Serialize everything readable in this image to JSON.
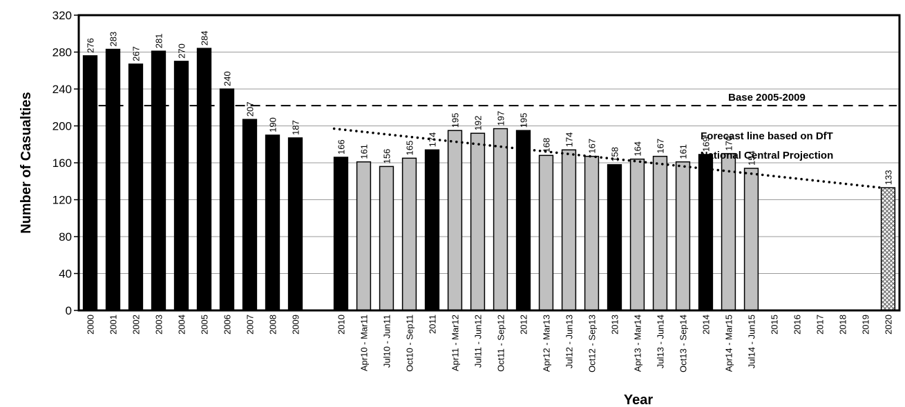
{
  "chart_data": {
    "type": "bar",
    "ylabel": "Number of Casualties",
    "xlabel": "Year",
    "ylim": [
      0,
      320
    ],
    "yticks": [
      0,
      40,
      80,
      120,
      160,
      200,
      240,
      280,
      320
    ],
    "grid": true,
    "colors": {
      "annual": "#000000",
      "rolling": "#c0c0c0",
      "target": "#bfbfbf",
      "outline": "#000000"
    },
    "bars": [
      {
        "label": "2000",
        "value": 276,
        "kind": "annual"
      },
      {
        "label": "2001",
        "value": 283,
        "kind": "annual"
      },
      {
        "label": "2002",
        "value": 267,
        "kind": "annual"
      },
      {
        "label": "2003",
        "value": 281,
        "kind": "annual"
      },
      {
        "label": "2004",
        "value": 270,
        "kind": "annual"
      },
      {
        "label": "2005",
        "value": 284,
        "kind": "annual"
      },
      {
        "label": "2006",
        "value": 240,
        "kind": "annual"
      },
      {
        "label": "2007",
        "value": 207,
        "kind": "annual"
      },
      {
        "label": "2008",
        "value": 190,
        "kind": "annual"
      },
      {
        "label": "2009",
        "value": 187,
        "kind": "annual"
      },
      {
        "label": "",
        "value": null,
        "kind": "gap"
      },
      {
        "label": "2010",
        "value": 166,
        "kind": "annual"
      },
      {
        "label": "Apr10 - Mar11",
        "value": 161,
        "kind": "rolling"
      },
      {
        "label": "Jul10 - Jun11",
        "value": 156,
        "kind": "rolling"
      },
      {
        "label": "Oct10 - Sep11",
        "value": 165,
        "kind": "rolling"
      },
      {
        "label": "2011",
        "value": 174,
        "kind": "annual"
      },
      {
        "label": "Apr11 - Mar12",
        "value": 195,
        "kind": "rolling"
      },
      {
        "label": "Jul11 - Jun12",
        "value": 192,
        "kind": "rolling"
      },
      {
        "label": "Oct11 - Sep12",
        "value": 197,
        "kind": "rolling"
      },
      {
        "label": "2012",
        "value": 195,
        "kind": "annual"
      },
      {
        "label": "Apr12 - Mar13",
        "value": 168,
        "kind": "rolling"
      },
      {
        "label": "Jul12 - Jun13",
        "value": 174,
        "kind": "rolling"
      },
      {
        "label": "Oct12 - Sep13",
        "value": 167,
        "kind": "rolling"
      },
      {
        "label": "2013",
        "value": 158,
        "kind": "annual"
      },
      {
        "label": "Apr13 - Mar14",
        "value": 164,
        "kind": "rolling"
      },
      {
        "label": "Jul13 - Jun14",
        "value": 167,
        "kind": "rolling"
      },
      {
        "label": "Oct13 - Sep14",
        "value": 161,
        "kind": "rolling"
      },
      {
        "label": "2014",
        "value": 169,
        "kind": "annual"
      },
      {
        "label": "Apr14 - Mar15",
        "value": 170,
        "kind": "rolling"
      },
      {
        "label": "Jul14 - Jun15",
        "value": 154,
        "kind": "rolling"
      },
      {
        "label": "2015",
        "value": null,
        "kind": "empty"
      },
      {
        "label": "2016",
        "value": null,
        "kind": "empty"
      },
      {
        "label": "2017",
        "value": null,
        "kind": "empty"
      },
      {
        "label": "2018",
        "value": null,
        "kind": "empty"
      },
      {
        "label": "2019",
        "value": null,
        "kind": "empty"
      },
      {
        "label": "2020",
        "value": 133,
        "kind": "target"
      }
    ],
    "baseline": {
      "label": "Base 2005-2009",
      "value": 222
    },
    "forecast": {
      "label_lines": [
        "Forecast line based on DfT",
        "National Central Projection"
      ],
      "from_value": 197,
      "to_value": 133
    }
  }
}
